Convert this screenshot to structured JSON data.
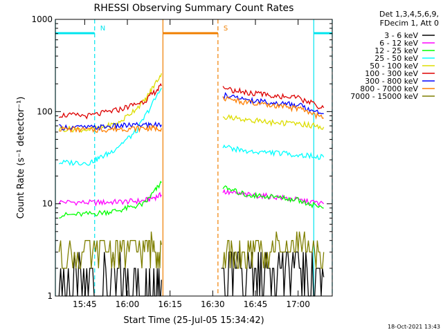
{
  "chart_data": {
    "type": "line",
    "title": "RHESSI Observing Summary Count Rates",
    "xlabel": "Start Time (25-Jul-05 15:34:42)",
    "ylabel": "Count Rate (s⁻¹ detector⁻¹)",
    "x_ticks": [
      "15:45",
      "16:00",
      "16:15",
      "16:30",
      "16:45",
      "17:00"
    ],
    "y_ticks": [
      "1",
      "10",
      "100",
      "1000"
    ],
    "y_scale": "log",
    "xlim": [
      "15:34:42",
      "17:12:00"
    ],
    "ylim": [
      1,
      1000
    ],
    "grid": false,
    "legend_position": "right",
    "legend_header": [
      "Det 1,3,4,5,6,9,",
      "FDecim 1, Att 0"
    ],
    "footer_date": "18-Oct-2021 13:43",
    "annotations": [
      {
        "label": "N",
        "kind": "night",
        "color": "#00e5ee",
        "intervals": [
          [
            "15:34:42",
            "15:48:30"
          ],
          [
            "17:05:30",
            "17:12:00"
          ]
        ]
      },
      {
        "label": "S",
        "kind": "saa",
        "color": "#f07f00",
        "intervals": [
          [
            "16:12:30",
            "16:31:50"
          ]
        ]
      }
    ],
    "data_gap": [
      "16:13:00",
      "16:33:00"
    ],
    "series": [
      {
        "name": "3 - 6 keV",
        "color": "#000000",
        "values_segment1": [
          [
            15.6,
            1.35
          ],
          [
            15.78,
            1.4
          ],
          [
            15.95,
            1.45
          ],
          [
            16.1,
            1.5
          ],
          [
            16.2,
            1.5
          ]
        ],
        "values_segment2": [
          [
            16.55,
            1.7
          ],
          [
            16.7,
            1.8
          ],
          [
            16.85,
            2.0
          ],
          [
            17.0,
            2.2
          ],
          [
            17.15,
            1.6
          ]
        ]
      },
      {
        "name": "6 - 12 keV",
        "color": "#ff00ff",
        "values_segment1": [
          [
            15.6,
            10.5
          ],
          [
            15.8,
            10.3
          ],
          [
            15.95,
            10.5
          ],
          [
            16.1,
            10.8
          ],
          [
            16.2,
            12.5
          ]
        ],
        "values_segment2": [
          [
            16.56,
            13.5
          ],
          [
            16.7,
            12.5
          ],
          [
            16.85,
            12.0
          ],
          [
            17.0,
            11.0
          ],
          [
            17.15,
            10.0
          ]
        ]
      },
      {
        "name": "12 - 25 keV",
        "color": "#00ff00",
        "values_segment1": [
          [
            15.6,
            7.5
          ],
          [
            15.8,
            7.8
          ],
          [
            15.95,
            8.5
          ],
          [
            16.1,
            10.0
          ],
          [
            16.2,
            17.0
          ]
        ],
        "values_segment2": [
          [
            16.56,
            15.0
          ],
          [
            16.7,
            12.5
          ],
          [
            16.85,
            12.0
          ],
          [
            17.0,
            11.0
          ],
          [
            17.15,
            9.0
          ]
        ]
      },
      {
        "name": "25 - 50 keV",
        "color": "#00ffff",
        "values_segment1": [
          [
            15.6,
            28
          ],
          [
            15.78,
            28
          ],
          [
            15.9,
            36
          ],
          [
            16.05,
            60
          ],
          [
            16.2,
            180
          ]
        ],
        "values_segment2": [
          [
            16.56,
            42
          ],
          [
            16.7,
            37
          ],
          [
            16.85,
            36
          ],
          [
            17.0,
            34
          ],
          [
            17.15,
            32
          ]
        ]
      },
      {
        "name": "50 - 100 keV",
        "color": "#dddd00",
        "values_segment1": [
          [
            15.6,
            65
          ],
          [
            15.8,
            64
          ],
          [
            15.95,
            75
          ],
          [
            16.1,
            130
          ],
          [
            16.2,
            260
          ]
        ],
        "values_segment2": [
          [
            16.56,
            88
          ],
          [
            16.7,
            82
          ],
          [
            16.85,
            76
          ],
          [
            17.0,
            74
          ],
          [
            17.15,
            68
          ]
        ]
      },
      {
        "name": "100 - 300 keV",
        "color": "#dd0000",
        "values_segment1": [
          [
            15.6,
            92
          ],
          [
            15.78,
            90
          ],
          [
            15.95,
            105
          ],
          [
            16.1,
            130
          ],
          [
            16.2,
            190
          ]
        ],
        "values_segment2": [
          [
            16.56,
            180
          ],
          [
            16.7,
            160
          ],
          [
            16.85,
            150
          ],
          [
            17.0,
            140
          ],
          [
            17.15,
            110
          ]
        ]
      },
      {
        "name": "300 - 800 keV",
        "color": "#0000ff",
        "values_segment1": [
          [
            15.6,
            68
          ],
          [
            15.8,
            67
          ],
          [
            15.95,
            70
          ],
          [
            16.1,
            72
          ],
          [
            16.2,
            72
          ]
        ],
        "values_segment2": [
          [
            16.56,
            150
          ],
          [
            16.7,
            135
          ],
          [
            16.85,
            125
          ],
          [
            17.0,
            118
          ],
          [
            17.15,
            95
          ]
        ]
      },
      {
        "name": "800 - 7000 keV",
        "color": "#ff7f00",
        "values_segment1": [
          [
            15.6,
            65
          ],
          [
            15.8,
            63
          ],
          [
            15.95,
            65
          ],
          [
            16.1,
            66
          ],
          [
            16.2,
            66
          ]
        ],
        "values_segment2": [
          [
            16.56,
            140
          ],
          [
            16.7,
            125
          ],
          [
            16.85,
            115
          ],
          [
            17.0,
            108
          ],
          [
            17.15,
            85
          ]
        ]
      },
      {
        "name": "7000 - 15000 keV",
        "color": "#7f7f00",
        "values_segment1": [
          [
            15.6,
            3.0
          ],
          [
            15.78,
            3.0
          ],
          [
            15.95,
            3.2
          ],
          [
            16.1,
            3.5
          ],
          [
            16.2,
            3.6
          ]
        ],
        "values_segment2": [
          [
            16.56,
            3.0
          ],
          [
            16.7,
            3.2
          ],
          [
            16.85,
            3.4
          ],
          [
            17.0,
            3.6
          ],
          [
            17.15,
            3.0
          ]
        ]
      }
    ]
  }
}
